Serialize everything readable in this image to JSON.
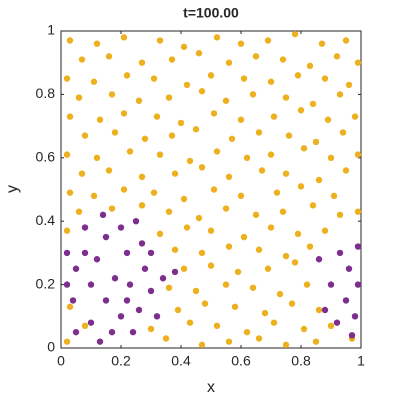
{
  "chart_data": {
    "type": "scatter",
    "title": "t=100.00",
    "x_label": "x",
    "y_label": "y",
    "xlim": [
      0,
      1
    ],
    "ylim": [
      0,
      1
    ],
    "xticks": [
      0,
      0.2,
      0.4,
      0.6,
      0.8,
      1
    ],
    "yticks": [
      0,
      0.2,
      0.4,
      0.6,
      0.8,
      1
    ],
    "series": [
      {
        "color": "#EDB120",
        "x": [
          0.03,
          0.12,
          0.21,
          0.33,
          0.41,
          0.52,
          0.6,
          0.69,
          0.78,
          0.87,
          0.95,
          0.07,
          0.16,
          0.27,
          0.37,
          0.46,
          0.56,
          0.65,
          0.74,
          0.83,
          0.92,
          0.99,
          0.02,
          0.11,
          0.22,
          0.31,
          0.42,
          0.5,
          0.61,
          0.7,
          0.79,
          0.88,
          0.96,
          0.06,
          0.17,
          0.26,
          0.36,
          0.47,
          0.55,
          0.64,
          0.75,
          0.84,
          0.93,
          0.03,
          0.13,
          0.21,
          0.32,
          0.4,
          0.51,
          0.6,
          0.71,
          0.8,
          0.89,
          0.98,
          0.08,
          0.18,
          0.28,
          0.37,
          0.45,
          0.57,
          0.66,
          0.76,
          0.85,
          0.94,
          0.02,
          0.12,
          0.23,
          0.33,
          0.43,
          0.52,
          0.62,
          0.7,
          0.81,
          0.9,
          0.99,
          0.07,
          0.16,
          0.27,
          0.38,
          0.47,
          0.56,
          0.67,
          0.75,
          0.86,
          0.95,
          0.03,
          0.11,
          0.21,
          0.31,
          0.41,
          0.51,
          0.6,
          0.72,
          0.8,
          0.91,
          0.06,
          0.17,
          0.27,
          0.36,
          0.46,
          0.55,
          0.65,
          0.74,
          0.84,
          0.93,
          0.99,
          0.02,
          0.33,
          0.42,
          0.5,
          0.61,
          0.7,
          0.79,
          0.88,
          0.38,
          0.47,
          0.56,
          0.66,
          0.75,
          0.83,
          0.41,
          0.5,
          0.59,
          0.69,
          0.78,
          0.36,
          0.45,
          0.55,
          0.64,
          0.73,
          0.82,
          0.03,
          0.39,
          0.48,
          0.58,
          0.68,
          0.77,
          0.86,
          0.08,
          0.3,
          0.43,
          0.52,
          0.62,
          0.71,
          0.81,
          0.9,
          0.02,
          0.35,
          0.47,
          0.56,
          0.66,
          0.75,
          0.85,
          0.97
        ],
        "y": [
          0.97,
          0.96,
          0.98,
          0.97,
          0.95,
          0.98,
          0.96,
          0.97,
          0.99,
          0.96,
          0.97,
          0.91,
          0.92,
          0.9,
          0.91,
          0.93,
          0.9,
          0.92,
          0.91,
          0.89,
          0.92,
          0.9,
          0.85,
          0.84,
          0.86,
          0.85,
          0.83,
          0.86,
          0.85,
          0.84,
          0.86,
          0.85,
          0.83,
          0.79,
          0.8,
          0.78,
          0.79,
          0.81,
          0.78,
          0.8,
          0.79,
          0.77,
          0.8,
          0.73,
          0.72,
          0.74,
          0.73,
          0.71,
          0.74,
          0.72,
          0.73,
          0.75,
          0.72,
          0.73,
          0.67,
          0.68,
          0.66,
          0.67,
          0.69,
          0.66,
          0.68,
          0.67,
          0.65,
          0.68,
          0.61,
          0.6,
          0.62,
          0.61,
          0.59,
          0.62,
          0.6,
          0.61,
          0.63,
          0.6,
          0.61,
          0.55,
          0.56,
          0.54,
          0.55,
          0.57,
          0.54,
          0.56,
          0.55,
          0.53,
          0.56,
          0.49,
          0.48,
          0.5,
          0.49,
          0.47,
          0.5,
          0.48,
          0.49,
          0.51,
          0.48,
          0.43,
          0.44,
          0.45,
          0.43,
          0.41,
          0.44,
          0.42,
          0.43,
          0.45,
          0.42,
          0.43,
          0.37,
          0.36,
          0.38,
          0.37,
          0.35,
          0.38,
          0.36,
          0.37,
          0.31,
          0.3,
          0.32,
          0.31,
          0.29,
          0.32,
          0.25,
          0.26,
          0.24,
          0.25,
          0.27,
          0.19,
          0.18,
          0.2,
          0.19,
          0.17,
          0.2,
          0.13,
          0.12,
          0.14,
          0.13,
          0.11,
          0.14,
          0.12,
          0.07,
          0.06,
          0.08,
          0.07,
          0.05,
          0.08,
          0.06,
          0.07,
          0.02,
          0.03,
          0.01,
          0.02,
          0.03,
          0.01,
          0.02,
          0.03
        ]
      },
      {
        "color": "#7E2F8E",
        "x": [
          0.02,
          0.05,
          0.08,
          0.1,
          0.04,
          0.12,
          0.15,
          0.14,
          0.2,
          0.22,
          0.25,
          0.27,
          0.18,
          0.23,
          0.28,
          0.3,
          0.26,
          0.2,
          0.15,
          0.1,
          0.05,
          0.17,
          0.24,
          0.32,
          0.34,
          0.38,
          0.3,
          0.08,
          0.13,
          0.22,
          0.02,
          0.86,
          0.9,
          0.93,
          0.96,
          0.99,
          0.95,
          0.98,
          0.92,
          0.88,
          0.99,
          0.97
        ],
        "y": [
          0.3,
          0.25,
          0.3,
          0.2,
          0.15,
          0.28,
          0.35,
          0.42,
          0.38,
          0.3,
          0.4,
          0.33,
          0.22,
          0.2,
          0.25,
          0.18,
          0.12,
          0.1,
          0.15,
          0.08,
          0.05,
          0.05,
          0.05,
          0.1,
          0.22,
          0.24,
          0.3,
          0.38,
          0.02,
          0.15,
          0.2,
          0.28,
          0.2,
          0.3,
          0.25,
          0.32,
          0.15,
          0.1,
          0.08,
          0.12,
          0.2,
          0.04
        ]
      }
    ]
  }
}
